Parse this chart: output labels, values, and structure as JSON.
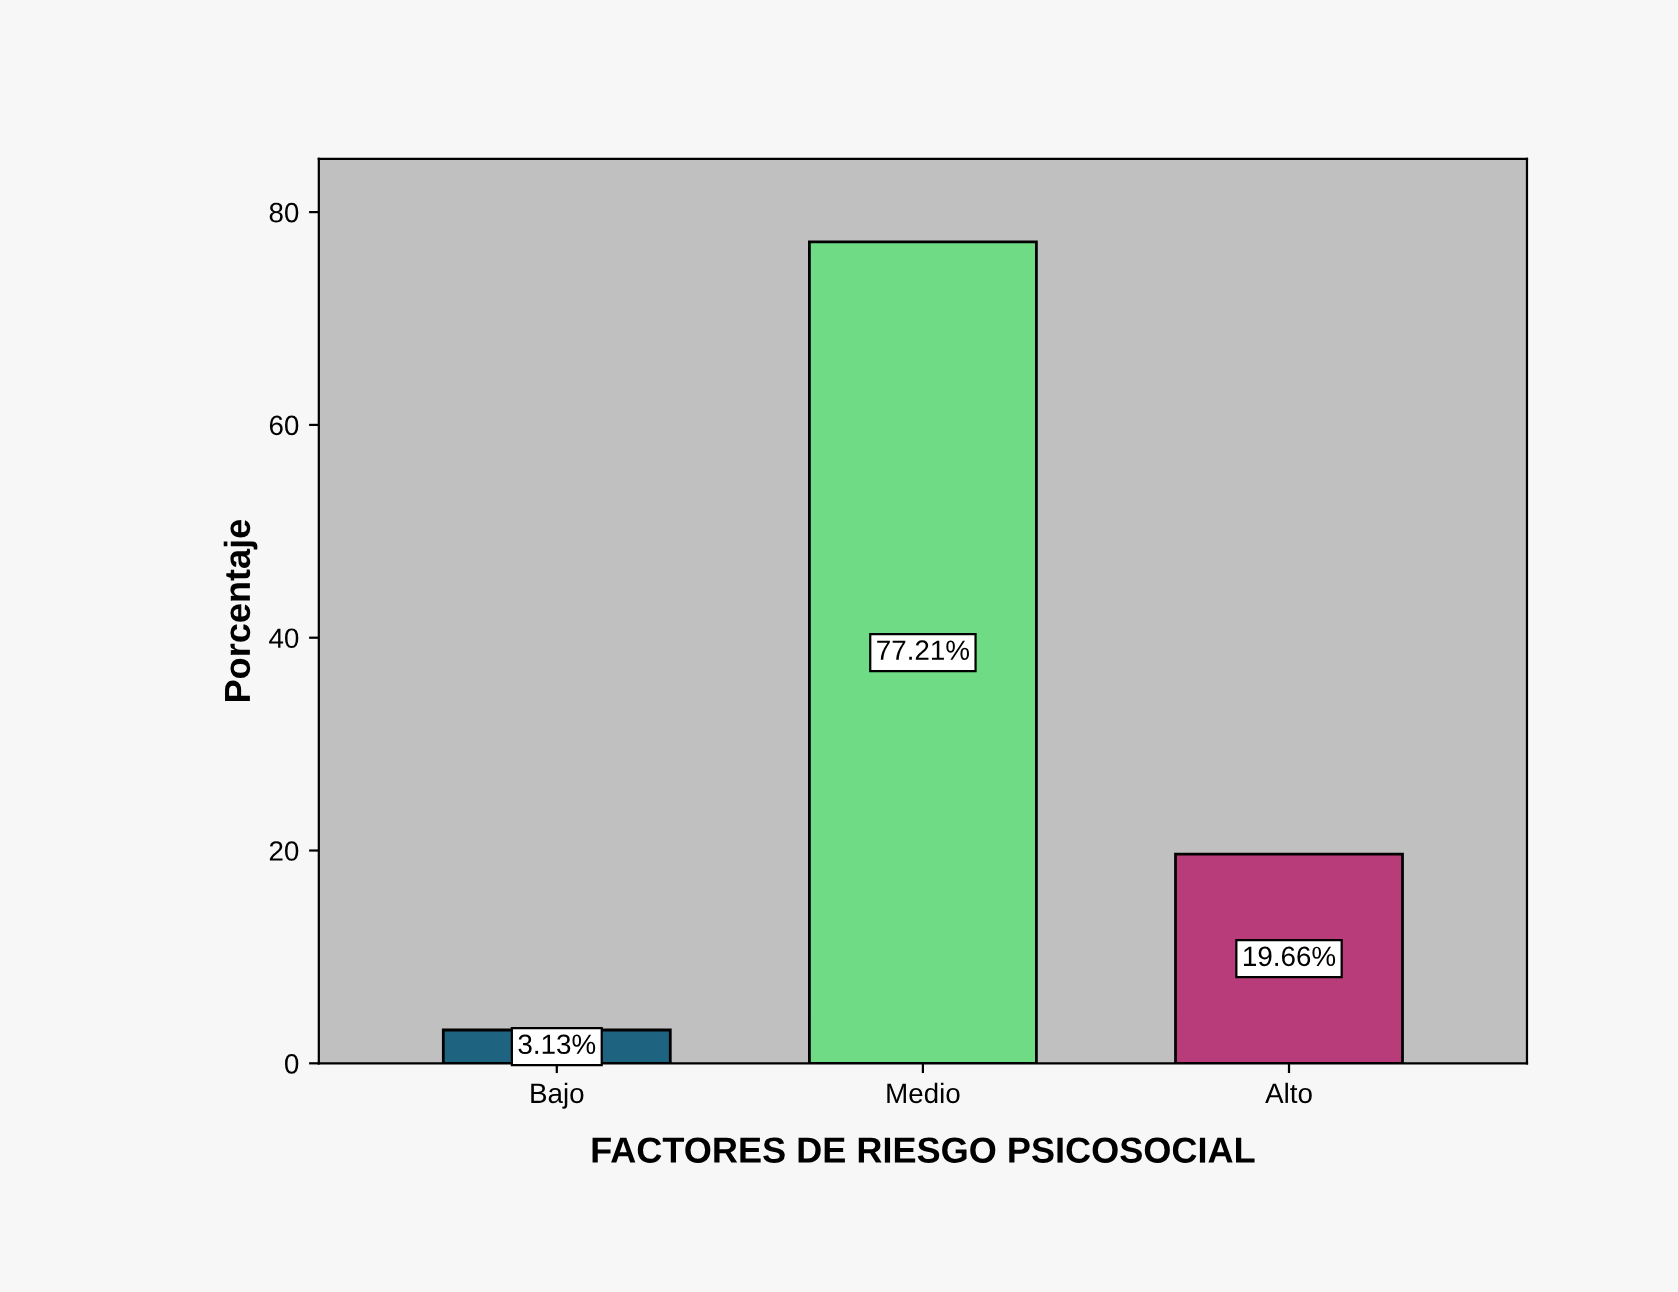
{
  "chart_data": {
    "type": "bar",
    "xlabel": "FACTORES DE RIESGO PSICOSOCIAL",
    "ylabel": "Porcentaje",
    "categories": [
      "Bajo",
      "Medio",
      "Alto"
    ],
    "values": [
      3.13,
      77.21,
      19.66
    ],
    "colors": [
      "#1e6480",
      "#6fdc85",
      "#b83c79"
    ],
    "value_labels": [
      "3.13%",
      "77.21%",
      "19.66%"
    ],
    "ylim": [
      0,
      85
    ],
    "yticks": [
      0,
      20,
      40,
      60,
      80
    ],
    "grid": false,
    "legend": false
  }
}
